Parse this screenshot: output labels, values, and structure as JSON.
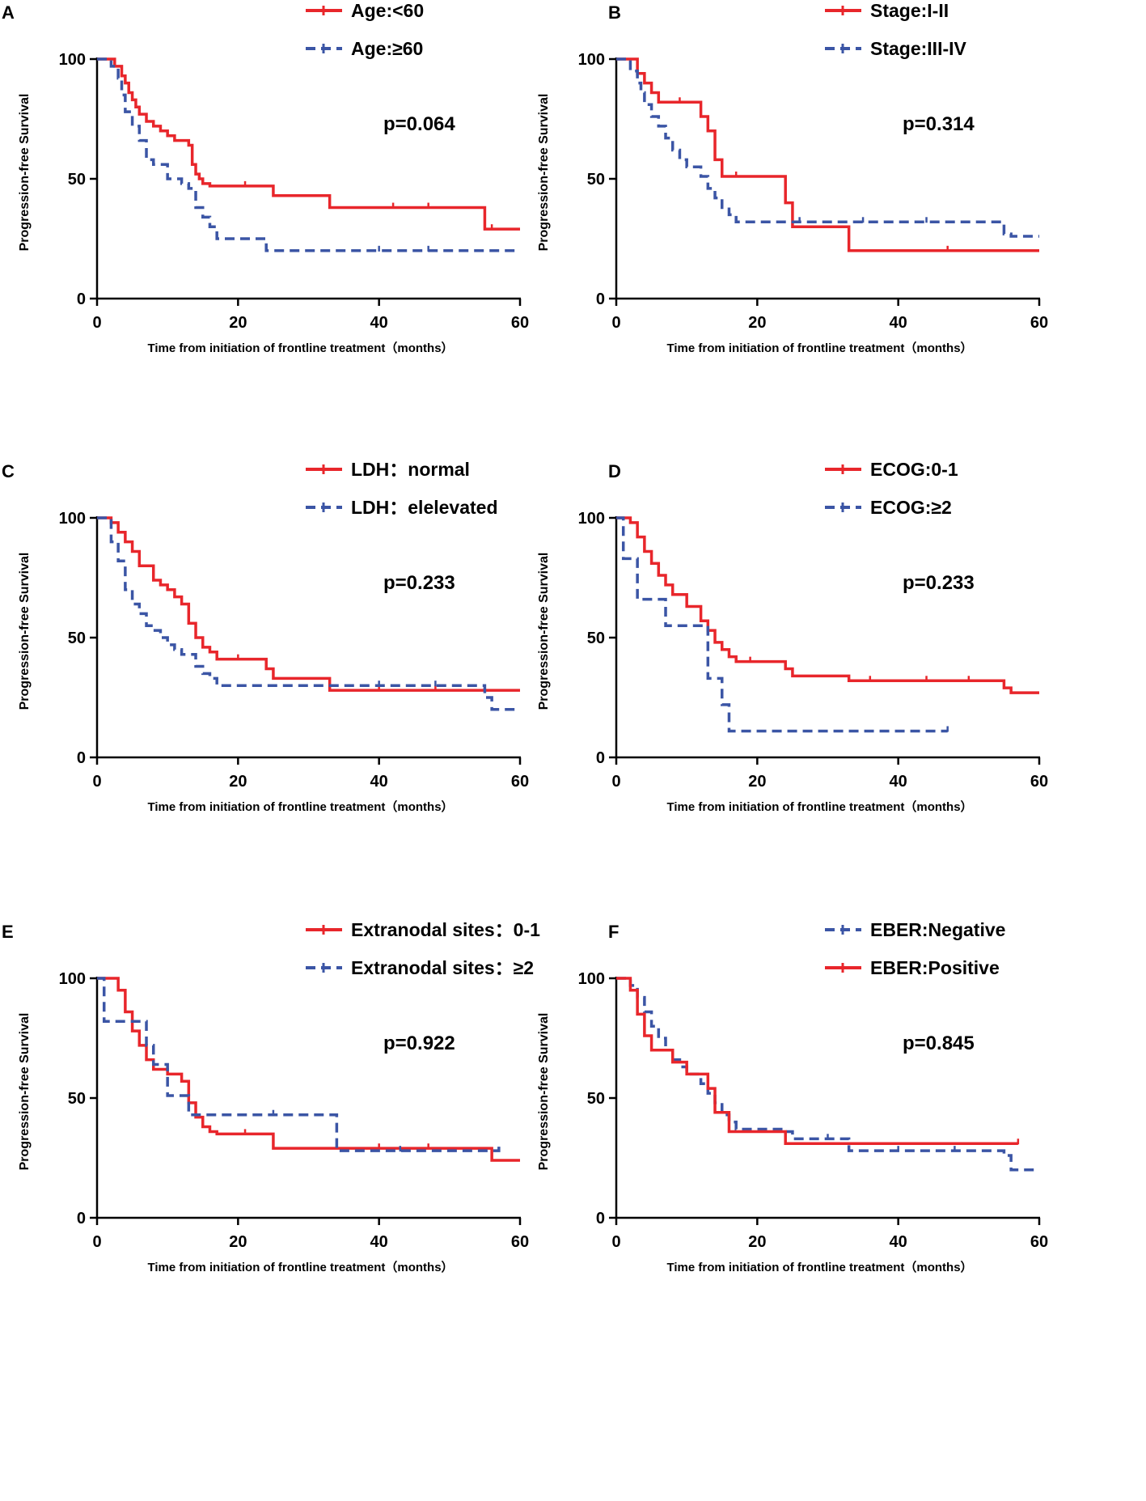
{
  "figure": {
    "axis": {
      "ylabel": "Progression-free Survival",
      "xlabel": "Time from initiation of frontline treatment（months）",
      "xticks": [
        0,
        20,
        40,
        60
      ],
      "yticks": [
        0,
        50,
        100
      ],
      "xlim": [
        0,
        60
      ],
      "ylim": [
        0,
        100
      ]
    },
    "colors": {
      "red": "#e8262b",
      "blue": "#3b55a5",
      "axis": "#000000"
    }
  },
  "chart_data": [
    {
      "panel": "A",
      "type": "line",
      "title": "",
      "pvalue": "p=0.064",
      "xlabel": "Time from initiation of frontline treatment（months）",
      "ylabel": "Progression-free Survival",
      "xlim": [
        0,
        60
      ],
      "ylim": [
        0,
        100
      ],
      "series": [
        {
          "name": "Age:<60",
          "color": "red",
          "style": "solid",
          "x": [
            0,
            2.5,
            3.5,
            4,
            4.5,
            5,
            5.5,
            6,
            7,
            8,
            9,
            10,
            11,
            13,
            13.5,
            14,
            14.5,
            15,
            16,
            25,
            33,
            55,
            60
          ],
          "y": [
            100,
            97,
            93,
            90,
            86,
            83,
            80,
            77,
            74,
            72,
            70,
            68,
            66,
            64,
            56,
            52,
            50,
            48,
            47,
            43,
            38,
            29,
            29
          ],
          "censor_x": [
            21,
            42,
            47,
            56
          ]
        },
        {
          "name": "Age:≥60",
          "color": "blue",
          "style": "dash",
          "x": [
            0,
            2,
            3,
            3.5,
            4,
            5,
            6,
            7,
            8,
            10,
            12,
            13,
            14,
            15,
            16,
            17,
            24,
            60
          ],
          "y": [
            100,
            97,
            92,
            85,
            78,
            72,
            66,
            58,
            56,
            50,
            48,
            46,
            38,
            34,
            30,
            25,
            20,
            20
          ],
          "censor_x": [
            40,
            47
          ]
        }
      ]
    },
    {
      "panel": "B",
      "type": "line",
      "title": "",
      "pvalue": "p=0.314",
      "xlabel": "Time from initiation of frontline treatment（months）",
      "ylabel": "Progression-free Survival",
      "xlim": [
        0,
        60
      ],
      "ylim": [
        0,
        100
      ],
      "series": [
        {
          "name": "Stage:I-II",
          "color": "red",
          "style": "solid",
          "x": [
            0,
            3,
            4,
            5,
            6,
            12,
            13,
            14,
            15,
            24,
            25,
            33,
            60
          ],
          "y": [
            100,
            94,
            90,
            86,
            82,
            76,
            70,
            58,
            51,
            40,
            30,
            20,
            20
          ],
          "censor_x": [
            9,
            17,
            47
          ]
        },
        {
          "name": "Stage:III-IV",
          "color": "blue",
          "style": "dash",
          "x": [
            0,
            2,
            3,
            3.5,
            4,
            5,
            6,
            7,
            8,
            9,
            10,
            12,
            13,
            14,
            15,
            16,
            17,
            55,
            56,
            60
          ],
          "y": [
            100,
            95,
            90,
            86,
            81,
            76,
            72,
            67,
            62,
            58,
            55,
            51,
            46,
            42,
            38,
            35,
            32,
            27,
            26,
            26
          ],
          "censor_x": [
            26,
            35,
            44
          ]
        }
      ]
    },
    {
      "panel": "C",
      "type": "line",
      "title": "",
      "pvalue": "p=0.233",
      "xlabel": "Time from initiation of frontline treatment（months）",
      "ylabel": "Progression-free Survival",
      "xlim": [
        0,
        60
      ],
      "ylim": [
        0,
        100
      ],
      "series": [
        {
          "name": "LDH：normal",
          "color": "red",
          "style": "solid",
          "x": [
            0,
            2,
            3,
            4,
            5,
            6,
            8,
            9,
            10,
            11,
            12,
            13,
            14,
            15,
            16,
            17,
            24,
            25,
            33,
            60
          ],
          "y": [
            100,
            98,
            94,
            90,
            86,
            80,
            74,
            72,
            70,
            67,
            64,
            56,
            50,
            46,
            44,
            41,
            37,
            33,
            28,
            28
          ],
          "censor_x": [
            20,
            40,
            48
          ]
        },
        {
          "name": "LDH：elelevated",
          "color": "blue",
          "style": "dash",
          "x": [
            0,
            2,
            3,
            4,
            5,
            6,
            7,
            8,
            9,
            10,
            11,
            12,
            14,
            15,
            16,
            17,
            55,
            56,
            60
          ],
          "y": [
            100,
            90,
            82,
            70,
            64,
            60,
            55,
            53,
            50,
            47,
            45,
            43,
            38,
            35,
            33,
            30,
            25,
            20,
            20
          ],
          "censor_x": [
            40,
            48
          ]
        }
      ]
    },
    {
      "panel": "D",
      "type": "line",
      "title": "",
      "pvalue": "p=0.233",
      "xlabel": "Time from initiation of frontline treatment（months）",
      "ylabel": "Progression-free Survival",
      "xlim": [
        0,
        60
      ],
      "ylim": [
        0,
        100
      ],
      "series": [
        {
          "name": "ECOG:0-1",
          "color": "red",
          "style": "solid",
          "x": [
            0,
            2,
            3,
            4,
            5,
            6,
            7,
            8,
            10,
            12,
            13,
            14,
            15,
            16,
            17,
            24,
            25,
            33,
            55,
            56,
            60
          ],
          "y": [
            100,
            98,
            92,
            86,
            81,
            76,
            72,
            68,
            63,
            57,
            53,
            48,
            45,
            42,
            40,
            37,
            34,
            32,
            29,
            27,
            27
          ],
          "censor_x": [
            19,
            36,
            44,
            50
          ]
        },
        {
          "name": "ECOG:≥2",
          "color": "blue",
          "style": "dash",
          "x": [
            0,
            1,
            3,
            7,
            13,
            15,
            16,
            47
          ],
          "y": [
            100,
            83,
            66,
            55,
            33,
            22,
            11,
            11
          ],
          "censor_x": [
            47
          ]
        }
      ]
    },
    {
      "panel": "E",
      "type": "line",
      "title": "",
      "pvalue": "p=0.922",
      "xlabel": "Time from initiation of frontline treatment（months）",
      "ylabel": "Progression-free Survival",
      "xlim": [
        0,
        60
      ],
      "ylim": [
        0,
        100
      ],
      "series": [
        {
          "name": "Extranodal sites：0-1",
          "color": "red",
          "style": "solid",
          "x": [
            0,
            3,
            4,
            5,
            6,
            7,
            8,
            10,
            12,
            13,
            14,
            15,
            16,
            17,
            25,
            56,
            60
          ],
          "y": [
            100,
            95,
            86,
            78,
            72,
            66,
            62,
            60,
            57,
            48,
            42,
            38,
            36,
            35,
            29,
            24,
            24
          ],
          "censor_x": [
            21,
            40,
            47
          ]
        },
        {
          "name": "Extranodal sites：≥2",
          "color": "blue",
          "style": "dash",
          "x": [
            0,
            1,
            7,
            8,
            10,
            13,
            33,
            34,
            56,
            57
          ],
          "y": [
            100,
            82,
            72,
            64,
            51,
            43,
            43,
            28,
            28,
            30
          ],
          "censor_x": [
            25,
            43
          ]
        }
      ]
    },
    {
      "panel": "F",
      "type": "line",
      "title": "",
      "pvalue": "p=0.845",
      "xlabel": "Time from initiation of frontline treatment（months）",
      "ylabel": "Progression-free Survival",
      "xlim": [
        0,
        60
      ],
      "ylim": [
        0,
        100
      ],
      "series": [
        {
          "name": "EBER:Negative",
          "color": "blue",
          "style": "dash",
          "x": [
            0,
            2,
            3,
            4,
            5,
            6,
            7,
            8,
            9,
            10,
            12,
            13,
            14,
            15,
            16,
            17,
            24,
            25,
            33,
            55,
            56,
            60
          ],
          "y": [
            100,
            97,
            92,
            86,
            80,
            75,
            70,
            66,
            63,
            60,
            56,
            52,
            48,
            43,
            40,
            37,
            36,
            33,
            28,
            26,
            20,
            20
          ],
          "censor_x": [
            30,
            40,
            48
          ]
        },
        {
          "name": "EBER:Positive",
          "color": "red",
          "style": "solid",
          "x": [
            0,
            2,
            3,
            4,
            5,
            8,
            10,
            13,
            14,
            16,
            24,
            57
          ],
          "y": [
            100,
            95,
            85,
            76,
            70,
            65,
            60,
            54,
            44,
            36,
            31,
            31
          ],
          "censor_x": [
            57
          ]
        }
      ]
    }
  ]
}
